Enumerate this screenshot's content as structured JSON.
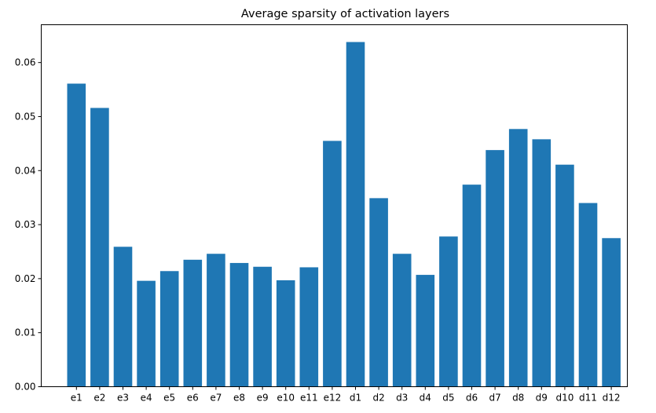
{
  "chart_data": {
    "type": "bar",
    "title": "Average sparsity of activation layers",
    "xlabel": "",
    "ylabel": "",
    "categories": [
      "e1",
      "e2",
      "e3",
      "e4",
      "e5",
      "e6",
      "e7",
      "e8",
      "e9",
      "e10",
      "e11",
      "e12",
      "d1",
      "d2",
      "d3",
      "d4",
      "d5",
      "d6",
      "d7",
      "d8",
      "d9",
      "d10",
      "d11",
      "d12"
    ],
    "values": [
      0.0561,
      0.0516,
      0.0259,
      0.0196,
      0.0214,
      0.0235,
      0.0246,
      0.0229,
      0.0222,
      0.0197,
      0.0221,
      0.0455,
      0.0638,
      0.0349,
      0.0246,
      0.0207,
      0.0278,
      0.0374,
      0.0438,
      0.0477,
      0.0458,
      0.0411,
      0.034,
      0.0275
    ],
    "ylim": [
      0,
      0.067
    ],
    "yticks": [
      "0.00",
      "0.01",
      "0.02",
      "0.03",
      "0.04",
      "0.05",
      "0.06"
    ],
    "bar_color": "#1f77b4",
    "grid": false,
    "legend": "none"
  }
}
